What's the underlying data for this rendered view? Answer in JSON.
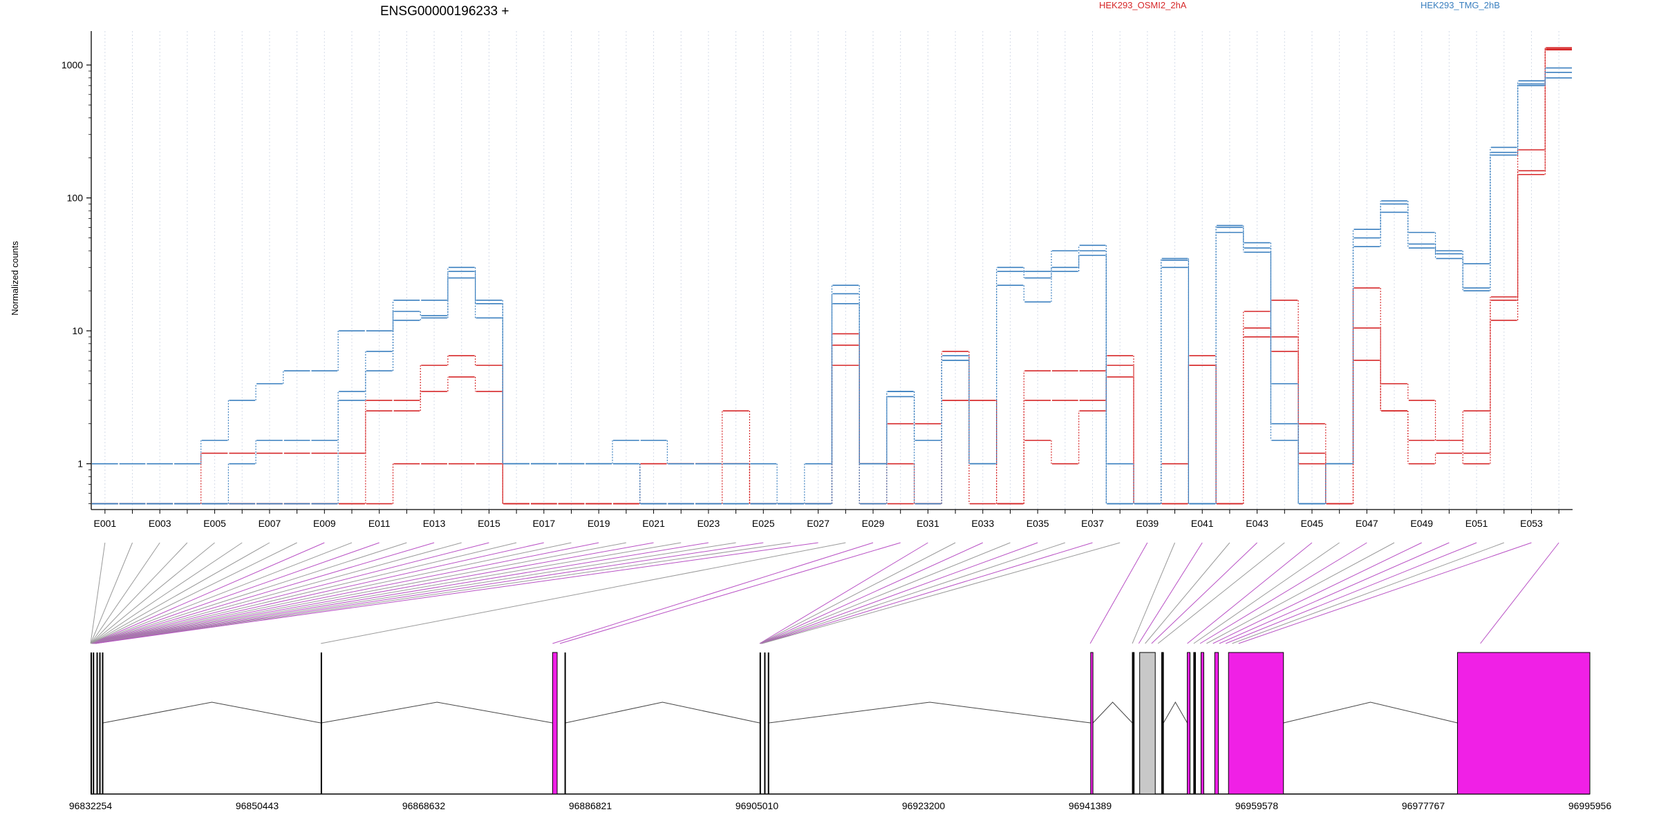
{
  "chart_data": {
    "type": "line",
    "title": "ENSG00000196233 +",
    "ylabel": "Normalized counts",
    "xlabel": "",
    "y_scale": "log",
    "ylim": [
      0.48,
      1800
    ],
    "y_ticks": [
      1,
      10,
      100,
      1000
    ],
    "y_tick_labels": [
      "1",
      "10",
      "100",
      "1000"
    ],
    "grid": "vertical dotted lines at each exon",
    "legend_placement": "top",
    "bins": [
      "E001",
      "E002",
      "E003",
      "E004",
      "E005",
      "E006",
      "E007",
      "E008",
      "E009",
      "E010",
      "E011",
      "E012",
      "E013",
      "E014",
      "E015",
      "E016",
      "E017",
      "E018",
      "E019",
      "E020",
      "E021",
      "E022",
      "E023",
      "E024",
      "E025",
      "E026",
      "E027",
      "E028",
      "E029",
      "E030",
      "E031",
      "E032",
      "E033",
      "E034",
      "E035",
      "E036",
      "E037",
      "E038",
      "E039",
      "E040",
      "E041",
      "E042",
      "E043",
      "E044",
      "E045",
      "E046",
      "E047",
      "E048",
      "E049",
      "E050",
      "E051",
      "E052",
      "E053",
      "E054"
    ],
    "x_tick_labels": [
      "E001",
      "E003",
      "E005",
      "E007",
      "E009",
      "E011",
      "E013",
      "E015",
      "E017",
      "E019",
      "E021",
      "E023",
      "E025",
      "E027",
      "E029",
      "E031",
      "E033",
      "E035",
      "E037",
      "E039",
      "E041",
      "E043",
      "E045",
      "E047",
      "E049",
      "E051",
      "E053"
    ],
    "groups": [
      {
        "name": "HEK293_OSMI2_2hA",
        "color": "#d62728"
      },
      {
        "name": "HEK293_TMG_2hB",
        "color": "#3a7fbf"
      }
    ],
    "series": [
      {
        "group": 0,
        "values": [
          0.5,
          0.5,
          0.5,
          0.5,
          1.2,
          1.2,
          1.2,
          1.2,
          1.2,
          1.2,
          2.5,
          2.5,
          5.5,
          6.5,
          5.5,
          0.5,
          0.5,
          0.5,
          0.5,
          0.5,
          1,
          1,
          1,
          1,
          0.5,
          0.5,
          0.5,
          9.5,
          1,
          0.5,
          0.5,
          3,
          3,
          0.5,
          5,
          5,
          5,
          6.5,
          0.5,
          0.5,
          5.5,
          0.5,
          14,
          17,
          2,
          0.5,
          21,
          4,
          3,
          1.5,
          2.5,
          17,
          230,
          1300
        ]
      },
      {
        "group": 0,
        "values": [
          0.5,
          0.5,
          0.5,
          0.5,
          0.5,
          0.5,
          0.5,
          0.5,
          0.5,
          0.5,
          3,
          3,
          3.5,
          4.5,
          3.5,
          0.5,
          0.5,
          0.5,
          0.5,
          0.5,
          0.5,
          0.5,
          0.5,
          2.5,
          0.5,
          0.5,
          0.5,
          5.5,
          1,
          2,
          2,
          3,
          3,
          0.5,
          3,
          3,
          3,
          5.5,
          0.5,
          0.5,
          6.5,
          0.5,
          10.5,
          9,
          1.2,
          0.5,
          10.5,
          2.5,
          1.5,
          1.5,
          1,
          18,
          160,
          1350
        ]
      },
      {
        "group": 0,
        "values": [
          0.5,
          0.5,
          0.5,
          0.5,
          0.5,
          0.5,
          0.5,
          0.5,
          0.5,
          0.5,
          0.5,
          1,
          1,
          1,
          1,
          0.5,
          0.5,
          0.5,
          0.5,
          0.5,
          1,
          1,
          1,
          1,
          0.5,
          0.5,
          0.5,
          7.8,
          0.5,
          1,
          0.5,
          7,
          0.5,
          0.5,
          1.5,
          1,
          2.5,
          4.5,
          0.5,
          1,
          5.5,
          0.5,
          9,
          7,
          1,
          0.5,
          6,
          2.5,
          1,
          1.2,
          1.2,
          12,
          150,
          1320
        ]
      },
      {
        "group": 1,
        "values": [
          1,
          1,
          1,
          1,
          1.5,
          3,
          4,
          5,
          5,
          10,
          10,
          17,
          17,
          30,
          17,
          1,
          1,
          1,
          1,
          1.5,
          1.5,
          1,
          1,
          1,
          1,
          0.5,
          1,
          22,
          1,
          3.5,
          1.5,
          6.5,
          1,
          30,
          28,
          40,
          44,
          1,
          0.5,
          35,
          0.5,
          62,
          46,
          4,
          0.5,
          1,
          58,
          95,
          55,
          40,
          32,
          240,
          760,
          950
        ]
      },
      {
        "group": 1,
        "values": [
          0.5,
          0.5,
          0.5,
          0.5,
          0.5,
          1,
          1.5,
          1.5,
          1.5,
          3.5,
          7,
          14,
          13,
          28,
          16,
          1,
          1,
          1,
          1,
          1,
          0.5,
          0.5,
          0.5,
          0.5,
          0.5,
          0.5,
          0.5,
          19,
          1,
          3.5,
          1.5,
          6,
          1,
          28,
          25,
          30,
          40,
          0.5,
          0.5,
          34,
          0.5,
          60,
          42,
          2,
          0.5,
          1,
          50,
          90,
          45,
          38,
          21,
          220,
          720,
          880
        ]
      },
      {
        "group": 1,
        "values": [
          0.5,
          0.5,
          0.5,
          0.5,
          0.5,
          0.5,
          0.5,
          0.5,
          0.5,
          3,
          5,
          12,
          12.5,
          25,
          12.5,
          1,
          1,
          1,
          1,
          1,
          0.5,
          0.5,
          0.5,
          0.5,
          0.5,
          0.5,
          0.5,
          16,
          0.5,
          3.2,
          0.5,
          6,
          1,
          22,
          16.5,
          28,
          37,
          0.5,
          0.5,
          30,
          0.5,
          55,
          39,
          1.5,
          0.5,
          1,
          43,
          78,
          42,
          35,
          20,
          210,
          700,
          800
        ]
      }
    ],
    "genomic_axis_ticks": [
      "96832254",
      "96850443",
      "96868632",
      "96886821",
      "96905010",
      "96923200",
      "96941389",
      "96959578",
      "96977767",
      "96995956"
    ]
  }
}
